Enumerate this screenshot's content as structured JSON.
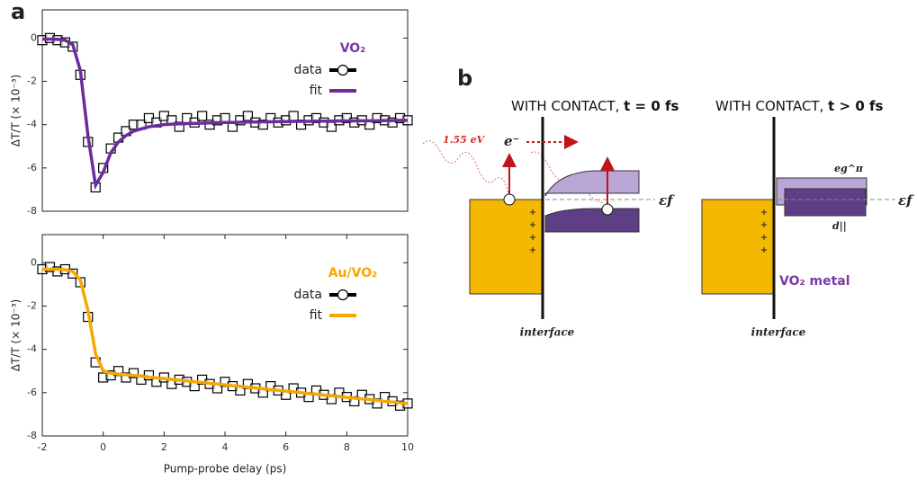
{
  "chart_data": [
    {
      "type": "line",
      "panel": "a",
      "ylabel": "ΔT/T (× 10⁻³)",
      "legend_title": "VO₂",
      "legend_color": "#7a3aa8",
      "xlim": [
        -2,
        10
      ],
      "ylim": [
        -8,
        1.3
      ],
      "yticks": [
        -8,
        -6,
        -4,
        -2,
        0
      ],
      "x": [
        -2,
        -1.75,
        -1.5,
        -1.25,
        -1,
        -0.75,
        -0.5,
        -0.25,
        0,
        0.25,
        0.5,
        0.75,
        1,
        1.25,
        1.5,
        1.75,
        2,
        2.25,
        2.5,
        2.75,
        3,
        3.25,
        3.5,
        3.75,
        4,
        4.25,
        4.5,
        4.75,
        5,
        5.25,
        5.5,
        5.75,
        6,
        6.25,
        6.5,
        6.75,
        7,
        7.25,
        7.5,
        7.75,
        8,
        8.25,
        8.5,
        8.75,
        9,
        9.25,
        9.5,
        9.75,
        10
      ],
      "series": [
        {
          "name": "data",
          "color": "#000000",
          "marker": "square",
          "values": [
            -0.1,
            0.0,
            -0.1,
            -0.2,
            -0.4,
            -1.7,
            -4.8,
            -6.9,
            -6.0,
            -5.1,
            -4.6,
            -4.3,
            -4.0,
            -4.0,
            -3.7,
            -3.9,
            -3.6,
            -3.8,
            -4.1,
            -3.7,
            -3.9,
            -3.6,
            -4.0,
            -3.8,
            -3.7,
            -4.1,
            -3.8,
            -3.6,
            -3.9,
            -4.0,
            -3.7,
            -3.9,
            -3.8,
            -3.6,
            -4.0,
            -3.8,
            -3.7,
            -3.9,
            -4.1,
            -3.8,
            -3.7,
            -3.9,
            -3.8,
            -4.0,
            -3.7,
            -3.8,
            -3.9,
            -3.7,
            -3.8
          ]
        },
        {
          "name": "fit",
          "color": "#6a2c9e",
          "marker": "line",
          "values": [
            -0.05,
            -0.05,
            -0.06,
            -0.1,
            -0.3,
            -1.5,
            -4.5,
            -6.8,
            -6.2,
            -5.3,
            -4.8,
            -4.5,
            -4.3,
            -4.2,
            -4.1,
            -4.05,
            -4.0,
            -3.98,
            -3.96,
            -3.95,
            -3.94,
            -3.93,
            -3.92,
            -3.91,
            -3.9,
            -3.9,
            -3.89,
            -3.88,
            -3.88,
            -3.87,
            -3.87,
            -3.86,
            -3.86,
            -3.85,
            -3.85,
            -3.85,
            -3.84,
            -3.84,
            -3.84,
            -3.83,
            -3.83,
            -3.83,
            -3.82,
            -3.82,
            -3.82,
            -3.81,
            -3.81,
            -3.8,
            -3.8
          ]
        }
      ]
    },
    {
      "type": "line",
      "ylabel": "ΔT/T (× 10⁻³)",
      "legend_title": "Au/VO₂",
      "legend_color": "#f5a800",
      "xlabel": "Pump-probe  delay (ps)",
      "xlim": [
        -2,
        10
      ],
      "ylim": [
        -8,
        1.3
      ],
      "yticks": [
        -8,
        -6,
        -4,
        -2,
        0
      ],
      "xticks": [
        -2,
        0,
        2,
        4,
        6,
        8,
        10
      ],
      "x": [
        -2,
        -1.75,
        -1.5,
        -1.25,
        -1,
        -0.75,
        -0.5,
        -0.25,
        0,
        0.25,
        0.5,
        0.75,
        1,
        1.25,
        1.5,
        1.75,
        2,
        2.25,
        2.5,
        2.75,
        3,
        3.25,
        3.5,
        3.75,
        4,
        4.25,
        4.5,
        4.75,
        5,
        5.25,
        5.5,
        5.75,
        6,
        6.25,
        6.5,
        6.75,
        7,
        7.25,
        7.5,
        7.75,
        8,
        8.25,
        8.5,
        8.75,
        9,
        9.25,
        9.5,
        9.75,
        10
      ],
      "series": [
        {
          "name": "data",
          "color": "#000000",
          "marker": "square",
          "values": [
            -0.3,
            -0.2,
            -0.4,
            -0.3,
            -0.5,
            -0.9,
            -2.5,
            -4.6,
            -5.3,
            -5.2,
            -5.0,
            -5.3,
            -5.1,
            -5.4,
            -5.2,
            -5.5,
            -5.3,
            -5.6,
            -5.4,
            -5.5,
            -5.7,
            -5.4,
            -5.6,
            -5.8,
            -5.5,
            -5.7,
            -5.9,
            -5.6,
            -5.8,
            -6.0,
            -5.7,
            -5.9,
            -6.1,
            -5.8,
            -6.0,
            -6.2,
            -5.9,
            -6.1,
            -6.3,
            -6.0,
            -6.2,
            -6.4,
            -6.1,
            -6.3,
            -6.5,
            -6.2,
            -6.4,
            -6.6,
            -6.5
          ]
        },
        {
          "name": "fit",
          "color": "#f5a800",
          "marker": "line",
          "values": [
            -0.3,
            -0.3,
            -0.3,
            -0.32,
            -0.4,
            -0.8,
            -2.2,
            -4.2,
            -5.0,
            -5.1,
            -5.14,
            -5.17,
            -5.21,
            -5.24,
            -5.28,
            -5.32,
            -5.35,
            -5.39,
            -5.42,
            -5.46,
            -5.5,
            -5.53,
            -5.57,
            -5.6,
            -5.64,
            -5.68,
            -5.71,
            -5.75,
            -5.78,
            -5.82,
            -5.86,
            -5.89,
            -5.93,
            -5.96,
            -6.0,
            -6.04,
            -6.07,
            -6.11,
            -6.14,
            -6.18,
            -6.22,
            -6.25,
            -6.29,
            -6.32,
            -6.36,
            -6.4,
            -6.43,
            -6.47,
            -6.5
          ]
        }
      ]
    }
  ],
  "diagram": {
    "panel": "b",
    "left": {
      "title": "WITH CONTACT, ",
      "title_bold": "t = 0 fs",
      "photon": "1.55 eV",
      "electron": "e⁻",
      "fermi": "εf",
      "interface": "interface"
    },
    "right": {
      "title": "WITH CONTACT, ",
      "title_bold": "t > 0 fs",
      "upper_band": "eg^π",
      "lower_band": "d||",
      "fermi": "εf",
      "phase": "VO₂ metal",
      "interface": "interface"
    }
  }
}
